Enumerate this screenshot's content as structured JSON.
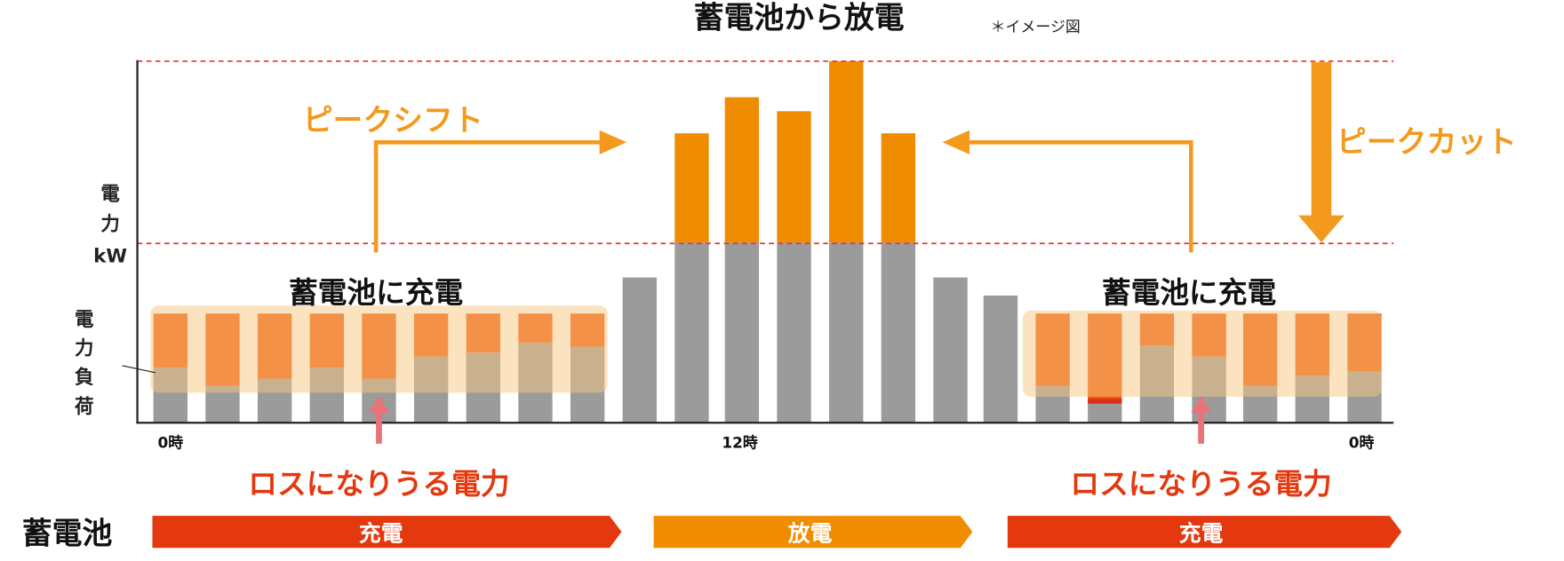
{
  "title": "蓄電池から放電",
  "note": "＊イメージ図",
  "y_axis_label": [
    "電",
    "力",
    "kW"
  ],
  "load_label": [
    "電",
    "力",
    "負",
    "荷"
  ],
  "annotations": {
    "peak_shift": "ピークシフト",
    "peak_cut": "ピークカット",
    "charge_left": "蓄電池に充電",
    "charge_right": "蓄電池に充電",
    "loss_left": "ロスになりうる電力",
    "loss_right": "ロスになりうる電力"
  },
  "x_labels": [
    "0時",
    "12時",
    "0時"
  ],
  "battery": {
    "label": "蓄電池",
    "phases": [
      "充電",
      "放電",
      "充電"
    ]
  }
}
